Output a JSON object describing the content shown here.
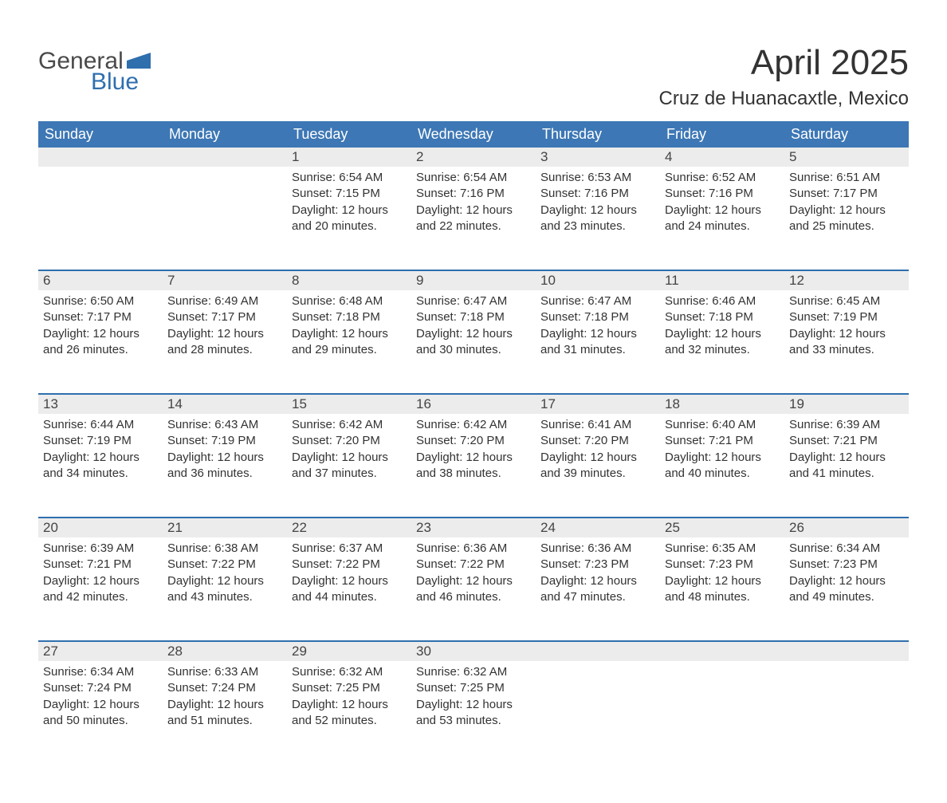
{
  "logo": {
    "text_general": "General",
    "text_blue": "Blue",
    "mark_color": "#2f6fae"
  },
  "title": "April 2025",
  "location": "Cruz de Huanacaxtle, Mexico",
  "colors": {
    "header_bg": "#3d77b5",
    "header_text": "#ffffff",
    "daynum_bg": "#ececec",
    "row_border": "#2f6fae",
    "body_text": "#333333"
  },
  "day_names": [
    "Sunday",
    "Monday",
    "Tuesday",
    "Wednesday",
    "Thursday",
    "Friday",
    "Saturday"
  ],
  "weeks": [
    [
      null,
      null,
      {
        "n": "1",
        "sunrise": "Sunrise: 6:54 AM",
        "sunset": "Sunset: 7:15 PM",
        "daylight1": "Daylight: 12 hours",
        "daylight2": "and 20 minutes."
      },
      {
        "n": "2",
        "sunrise": "Sunrise: 6:54 AM",
        "sunset": "Sunset: 7:16 PM",
        "daylight1": "Daylight: 12 hours",
        "daylight2": "and 22 minutes."
      },
      {
        "n": "3",
        "sunrise": "Sunrise: 6:53 AM",
        "sunset": "Sunset: 7:16 PM",
        "daylight1": "Daylight: 12 hours",
        "daylight2": "and 23 minutes."
      },
      {
        "n": "4",
        "sunrise": "Sunrise: 6:52 AM",
        "sunset": "Sunset: 7:16 PM",
        "daylight1": "Daylight: 12 hours",
        "daylight2": "and 24 minutes."
      },
      {
        "n": "5",
        "sunrise": "Sunrise: 6:51 AM",
        "sunset": "Sunset: 7:17 PM",
        "daylight1": "Daylight: 12 hours",
        "daylight2": "and 25 minutes."
      }
    ],
    [
      {
        "n": "6",
        "sunrise": "Sunrise: 6:50 AM",
        "sunset": "Sunset: 7:17 PM",
        "daylight1": "Daylight: 12 hours",
        "daylight2": "and 26 minutes."
      },
      {
        "n": "7",
        "sunrise": "Sunrise: 6:49 AM",
        "sunset": "Sunset: 7:17 PM",
        "daylight1": "Daylight: 12 hours",
        "daylight2": "and 28 minutes."
      },
      {
        "n": "8",
        "sunrise": "Sunrise: 6:48 AM",
        "sunset": "Sunset: 7:18 PM",
        "daylight1": "Daylight: 12 hours",
        "daylight2": "and 29 minutes."
      },
      {
        "n": "9",
        "sunrise": "Sunrise: 6:47 AM",
        "sunset": "Sunset: 7:18 PM",
        "daylight1": "Daylight: 12 hours",
        "daylight2": "and 30 minutes."
      },
      {
        "n": "10",
        "sunrise": "Sunrise: 6:47 AM",
        "sunset": "Sunset: 7:18 PM",
        "daylight1": "Daylight: 12 hours",
        "daylight2": "and 31 minutes."
      },
      {
        "n": "11",
        "sunrise": "Sunrise: 6:46 AM",
        "sunset": "Sunset: 7:18 PM",
        "daylight1": "Daylight: 12 hours",
        "daylight2": "and 32 minutes."
      },
      {
        "n": "12",
        "sunrise": "Sunrise: 6:45 AM",
        "sunset": "Sunset: 7:19 PM",
        "daylight1": "Daylight: 12 hours",
        "daylight2": "and 33 minutes."
      }
    ],
    [
      {
        "n": "13",
        "sunrise": "Sunrise: 6:44 AM",
        "sunset": "Sunset: 7:19 PM",
        "daylight1": "Daylight: 12 hours",
        "daylight2": "and 34 minutes."
      },
      {
        "n": "14",
        "sunrise": "Sunrise: 6:43 AM",
        "sunset": "Sunset: 7:19 PM",
        "daylight1": "Daylight: 12 hours",
        "daylight2": "and 36 minutes."
      },
      {
        "n": "15",
        "sunrise": "Sunrise: 6:42 AM",
        "sunset": "Sunset: 7:20 PM",
        "daylight1": "Daylight: 12 hours",
        "daylight2": "and 37 minutes."
      },
      {
        "n": "16",
        "sunrise": "Sunrise: 6:42 AM",
        "sunset": "Sunset: 7:20 PM",
        "daylight1": "Daylight: 12 hours",
        "daylight2": "and 38 minutes."
      },
      {
        "n": "17",
        "sunrise": "Sunrise: 6:41 AM",
        "sunset": "Sunset: 7:20 PM",
        "daylight1": "Daylight: 12 hours",
        "daylight2": "and 39 minutes."
      },
      {
        "n": "18",
        "sunrise": "Sunrise: 6:40 AM",
        "sunset": "Sunset: 7:21 PM",
        "daylight1": "Daylight: 12 hours",
        "daylight2": "and 40 minutes."
      },
      {
        "n": "19",
        "sunrise": "Sunrise: 6:39 AM",
        "sunset": "Sunset: 7:21 PM",
        "daylight1": "Daylight: 12 hours",
        "daylight2": "and 41 minutes."
      }
    ],
    [
      {
        "n": "20",
        "sunrise": "Sunrise: 6:39 AM",
        "sunset": "Sunset: 7:21 PM",
        "daylight1": "Daylight: 12 hours",
        "daylight2": "and 42 minutes."
      },
      {
        "n": "21",
        "sunrise": "Sunrise: 6:38 AM",
        "sunset": "Sunset: 7:22 PM",
        "daylight1": "Daylight: 12 hours",
        "daylight2": "and 43 minutes."
      },
      {
        "n": "22",
        "sunrise": "Sunrise: 6:37 AM",
        "sunset": "Sunset: 7:22 PM",
        "daylight1": "Daylight: 12 hours",
        "daylight2": "and 44 minutes."
      },
      {
        "n": "23",
        "sunrise": "Sunrise: 6:36 AM",
        "sunset": "Sunset: 7:22 PM",
        "daylight1": "Daylight: 12 hours",
        "daylight2": "and 46 minutes."
      },
      {
        "n": "24",
        "sunrise": "Sunrise: 6:36 AM",
        "sunset": "Sunset: 7:23 PM",
        "daylight1": "Daylight: 12 hours",
        "daylight2": "and 47 minutes."
      },
      {
        "n": "25",
        "sunrise": "Sunrise: 6:35 AM",
        "sunset": "Sunset: 7:23 PM",
        "daylight1": "Daylight: 12 hours",
        "daylight2": "and 48 minutes."
      },
      {
        "n": "26",
        "sunrise": "Sunrise: 6:34 AM",
        "sunset": "Sunset: 7:23 PM",
        "daylight1": "Daylight: 12 hours",
        "daylight2": "and 49 minutes."
      }
    ],
    [
      {
        "n": "27",
        "sunrise": "Sunrise: 6:34 AM",
        "sunset": "Sunset: 7:24 PM",
        "daylight1": "Daylight: 12 hours",
        "daylight2": "and 50 minutes."
      },
      {
        "n": "28",
        "sunrise": "Sunrise: 6:33 AM",
        "sunset": "Sunset: 7:24 PM",
        "daylight1": "Daylight: 12 hours",
        "daylight2": "and 51 minutes."
      },
      {
        "n": "29",
        "sunrise": "Sunrise: 6:32 AM",
        "sunset": "Sunset: 7:25 PM",
        "daylight1": "Daylight: 12 hours",
        "daylight2": "and 52 minutes."
      },
      {
        "n": "30",
        "sunrise": "Sunrise: 6:32 AM",
        "sunset": "Sunset: 7:25 PM",
        "daylight1": "Daylight: 12 hours",
        "daylight2": "and 53 minutes."
      },
      null,
      null,
      null
    ]
  ]
}
